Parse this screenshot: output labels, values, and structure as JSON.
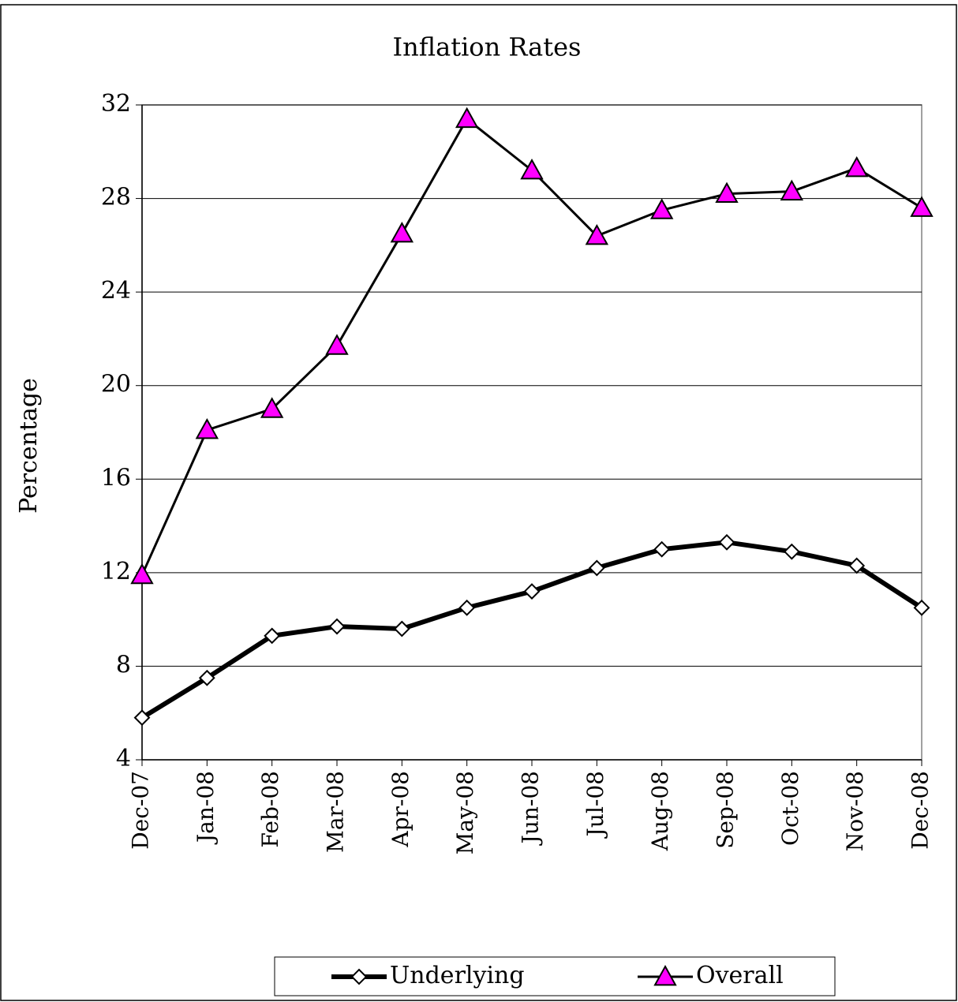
{
  "chart_data": {
    "type": "line",
    "title": "Inflation Rates",
    "ylabel": "Percentage",
    "categories": [
      "Dec-07",
      "Jan-08",
      "Feb-08",
      "Mar-08",
      "Apr-08",
      "May-08",
      "Jun-08",
      "Jul-08",
      "Aug-08",
      "Sep-08",
      "Oct-08",
      "Nov-08",
      "Dec-08"
    ],
    "series": [
      {
        "name": "Underlying",
        "color": "#000000",
        "marker": "diamond",
        "marker_fill": "#ffffff",
        "values": [
          5.8,
          7.5,
          9.3,
          9.7,
          9.6,
          10.5,
          11.2,
          12.2,
          13.0,
          13.3,
          12.9,
          12.3,
          10.5
        ]
      },
      {
        "name": "Overall",
        "color": "#000000",
        "marker": "triangle",
        "marker_fill": "#ff00ff",
        "values": [
          11.9,
          18.1,
          19.0,
          21.7,
          26.5,
          31.4,
          29.2,
          26.4,
          27.5,
          28.2,
          28.3,
          29.3,
          27.6
        ]
      }
    ],
    "ylim": [
      4,
      32
    ],
    "yticks": [
      4,
      8,
      12,
      16,
      20,
      24,
      28,
      32
    ],
    "grid": true,
    "legend": "bottom"
  }
}
